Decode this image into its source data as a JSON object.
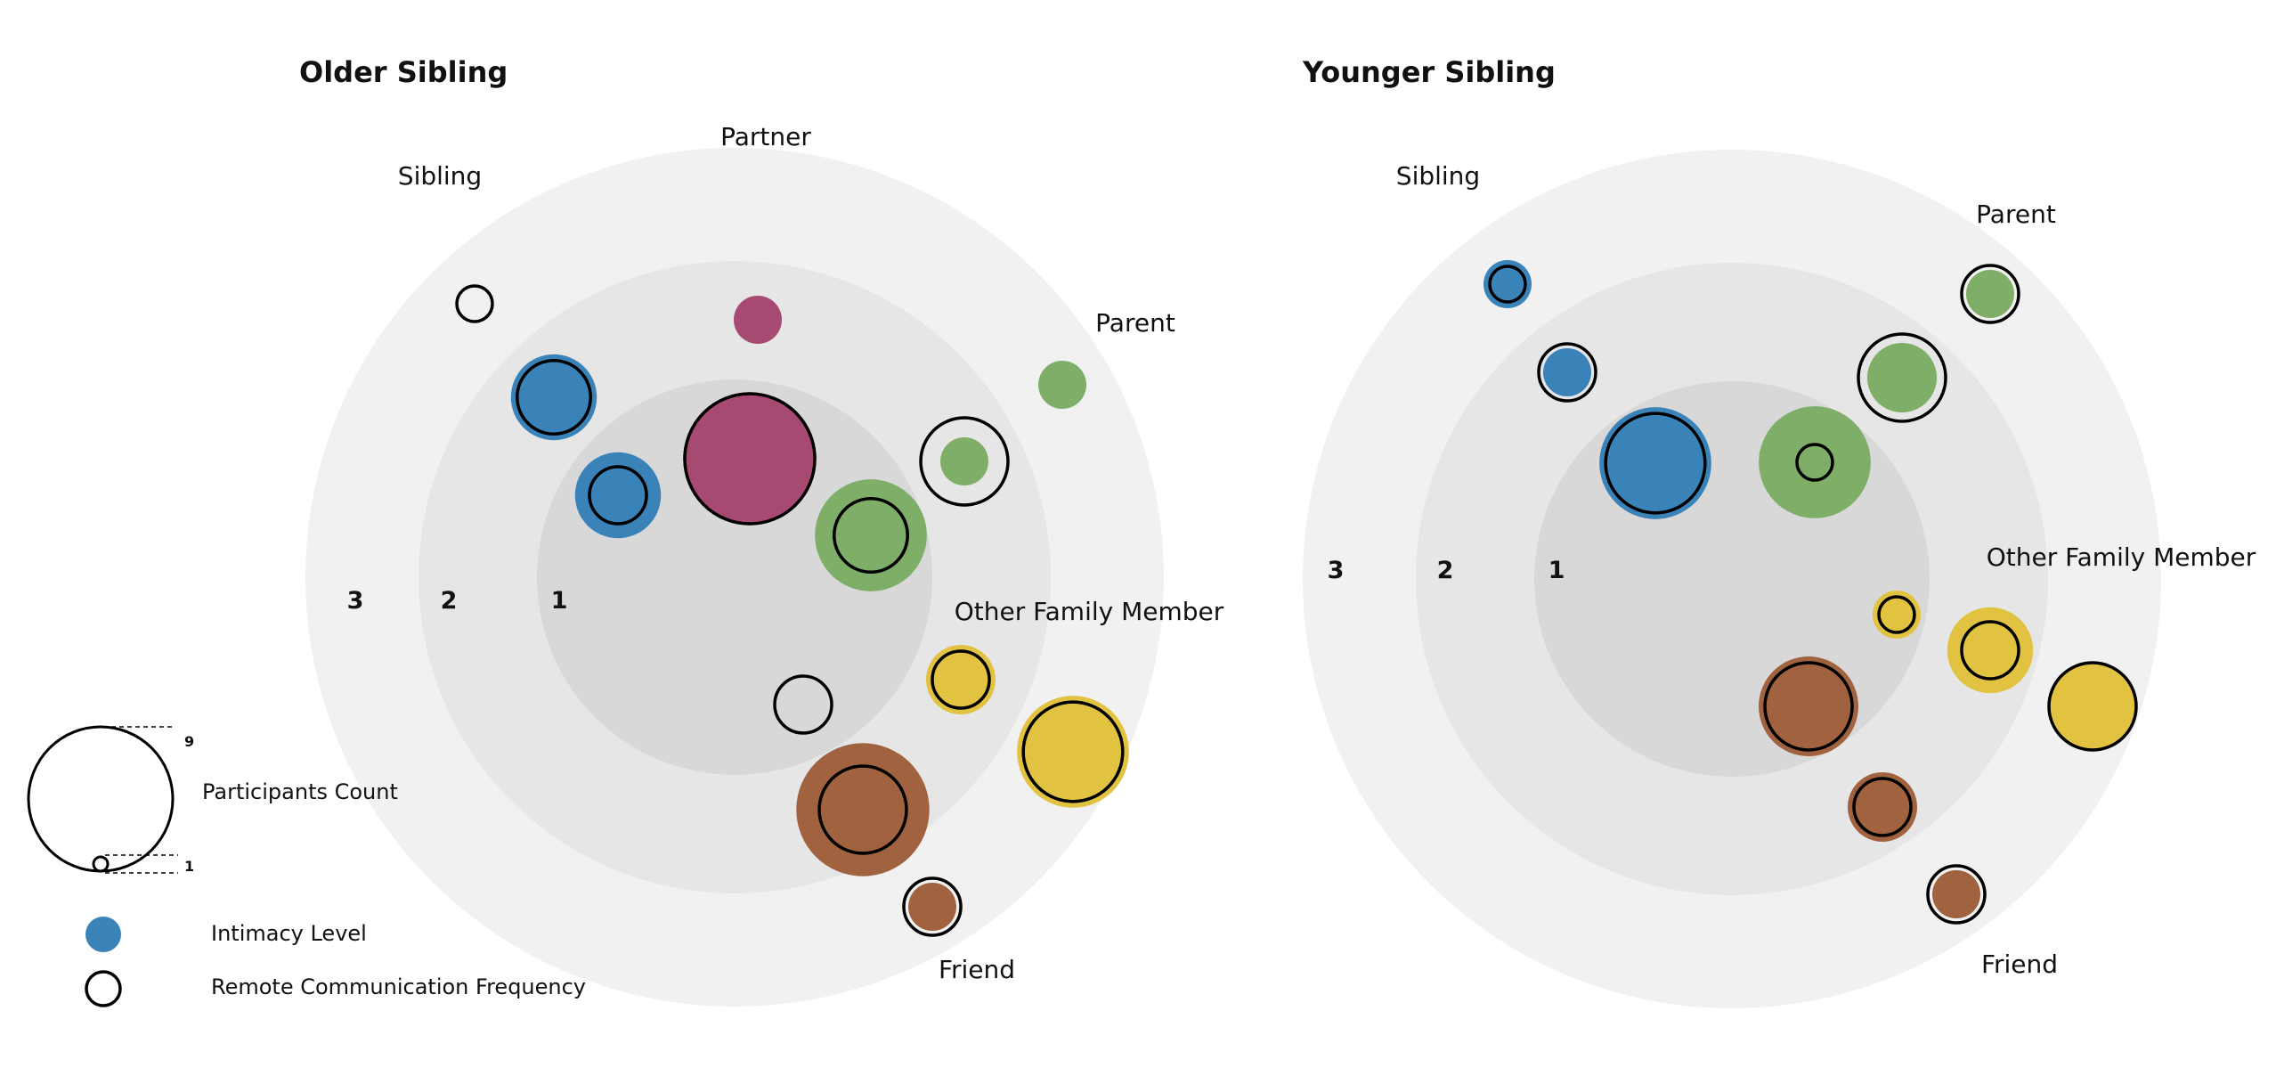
{
  "legend": {
    "size_title": "Participants Count",
    "size_max_label": "9",
    "size_min_label": "1",
    "fill_label": "Intimacy Level",
    "outline_label": "Remote Communication Frequency",
    "fill_color": "#3a83b8",
    "outline_color": "#000000"
  },
  "ring_colors": [
    "#d8d8d8",
    "#e6e6e6",
    "#f1f1f1"
  ],
  "category_colors": {
    "Sibling": "#3a83b8",
    "Partner": "#a64a72",
    "Parent": "#7fae68",
    "Other Family Member": "#e2c241",
    "Friend": "#a0623f"
  },
  "panels": [
    {
      "title": "Older Sibling",
      "ring_labels": [
        "1",
        "2",
        "3"
      ],
      "category_labels": [
        {
          "text": "Sibling"
        },
        {
          "text": "Partner"
        },
        {
          "text": "Parent"
        },
        {
          "text": "Other Family Member"
        },
        {
          "text": "Friend"
        }
      ],
      "bubbles": [
        {
          "category": "Sibling",
          "fill_count": 0,
          "outline_count": 1
        },
        {
          "category": "Sibling",
          "fill_count": 3,
          "outline_count": 3
        },
        {
          "category": "Sibling",
          "fill_count": 3,
          "outline_count": 2
        },
        {
          "category": "Partner",
          "fill_count": 1,
          "outline_count": 0
        },
        {
          "category": "Partner",
          "fill_count": 7,
          "outline_count": 8
        },
        {
          "category": "Parent",
          "fill_count": 1,
          "outline_count": 0
        },
        {
          "category": "Parent",
          "fill_count": 1,
          "outline_count": 4
        },
        {
          "category": "Parent",
          "fill_count": 5,
          "outline_count": 3
        },
        {
          "category": "Other Family Member",
          "fill_count": 2,
          "outline_count": 2
        },
        {
          "category": "Other Family Member",
          "fill_count": 5,
          "outline_count": 5
        },
        {
          "category": "Friend",
          "fill_count": 0,
          "outline_count": 2
        },
        {
          "category": "Friend",
          "fill_count": 7,
          "outline_count": 4
        },
        {
          "category": "Friend",
          "fill_count": 1,
          "outline_count": 2
        }
      ]
    },
    {
      "title": "Younger Sibling",
      "ring_labels": [
        "1",
        "2",
        "3"
      ],
      "category_labels": [
        {
          "text": "Sibling"
        },
        {
          "text": "Parent"
        },
        {
          "text": "Other Family Member"
        },
        {
          "text": "Friend"
        }
      ],
      "bubbles": [
        {
          "category": "Sibling",
          "fill_count": 1,
          "outline_count": 1
        },
        {
          "category": "Sibling",
          "fill_count": 1,
          "outline_count": 2
        },
        {
          "category": "Sibling",
          "fill_count": 5,
          "outline_count": 5
        },
        {
          "category": "Parent",
          "fill_count": 1,
          "outline_count": 2
        },
        {
          "category": "Parent",
          "fill_count": 2,
          "outline_count": 4
        },
        {
          "category": "Parent",
          "fill_count": 5,
          "outline_count": 1
        },
        {
          "category": "Other Family Member",
          "fill_count": 1,
          "outline_count": 1
        },
        {
          "category": "Other Family Member",
          "fill_count": 3,
          "outline_count": 2
        },
        {
          "category": "Other Family Member",
          "fill_count": 3,
          "outline_count": 4
        },
        {
          "category": "Friend",
          "fill_count": 4,
          "outline_count": 4
        },
        {
          "category": "Friend",
          "fill_count": 2,
          "outline_count": 2
        },
        {
          "category": "Friend",
          "fill_count": 1,
          "outline_count": 2
        }
      ]
    }
  ]
}
